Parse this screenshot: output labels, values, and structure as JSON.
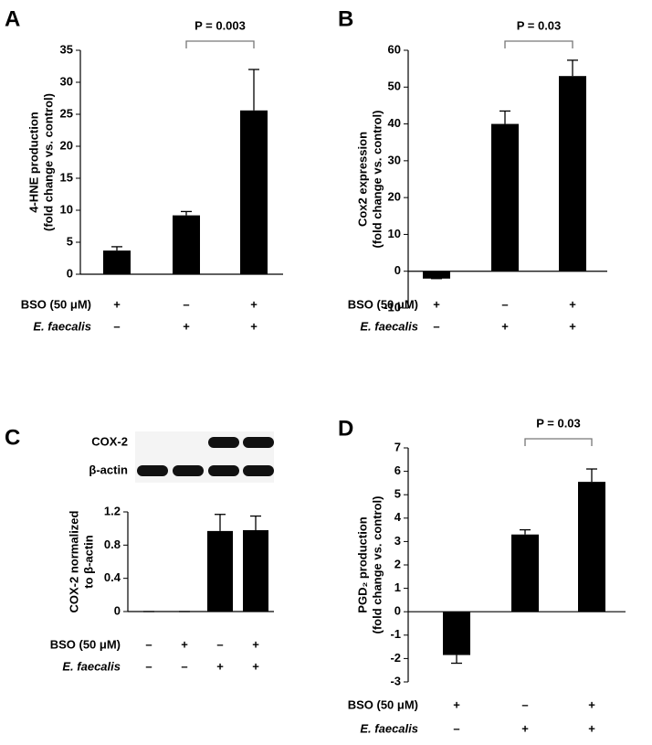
{
  "chart_data": [
    {
      "type": "bar",
      "panel": "A",
      "y_label": [
        "4-HNE production",
        "(fold change vs. control)"
      ],
      "values": [
        3.7,
        9.2,
        25.6
      ],
      "errors": [
        0.6,
        0.6,
        6.4
      ],
      "color": "#000000",
      "ylim": [
        0,
        35
      ],
      "yticks": [
        0,
        5,
        10,
        15,
        20,
        25,
        30,
        35
      ],
      "significance": "P = 0.003",
      "conditions": [
        {
          "name": "BSO (50 μM)",
          "signs": [
            "+",
            "–",
            "+"
          ]
        },
        {
          "name": "E. faecalis",
          "signs": [
            "–",
            "+",
            "+"
          ]
        }
      ]
    },
    {
      "type": "bar",
      "panel": "B",
      "y_label": [
        "Cox2 expression",
        "(fold change vs. control)"
      ],
      "values": [
        -2,
        40,
        53
      ],
      "errors": [
        0,
        3.5,
        4.3
      ],
      "color": "#000000",
      "ylim": [
        -10,
        60
      ],
      "yticks": [
        -10,
        0,
        10,
        20,
        30,
        40,
        50,
        60
      ],
      "significance": "P = 0.03",
      "conditions": [
        {
          "name": "BSO (50 μM)",
          "signs": [
            "+",
            "–",
            "+"
          ]
        },
        {
          "name": "E. faecalis",
          "signs": [
            "–",
            "+",
            "+"
          ]
        }
      ]
    },
    {
      "type": "bar",
      "panel": "C",
      "blot": [
        "COX-2",
        "β-actin"
      ],
      "y_label": [
        "COX-2 normalized",
        "to β-actin"
      ],
      "values": [
        0,
        0,
        0.97,
        0.98
      ],
      "errors": [
        0,
        0,
        0.2,
        0.17
      ],
      "color": "#000000",
      "ylim": [
        0,
        1.2
      ],
      "yticks": [
        0,
        0.4,
        0.8,
        1.2
      ],
      "conditions": [
        {
          "name": "BSO (50 μM)",
          "signs": [
            "–",
            "+",
            "–",
            "+"
          ]
        },
        {
          "name": "E. faecalis",
          "signs": [
            "–",
            "–",
            "+",
            "+"
          ]
        }
      ]
    },
    {
      "type": "bar",
      "panel": "D",
      "y_label": [
        "PGD₂ production",
        "(fold change vs. control)"
      ],
      "values": [
        -1.85,
        3.3,
        5.55
      ],
      "errors": [
        0.35,
        0.2,
        0.55
      ],
      "color": "#000000",
      "ylim": [
        -3,
        7
      ],
      "yticks": [
        -3,
        -2,
        -1,
        0,
        1,
        2,
        3,
        4,
        5,
        6,
        7
      ],
      "significance": "P = 0.03",
      "conditions": [
        {
          "name": "BSO (50 μM)",
          "signs": [
            "+",
            "–",
            "+"
          ]
        },
        {
          "name": "E. faecalis",
          "signs": [
            "–",
            "+",
            "+"
          ]
        }
      ]
    }
  ]
}
